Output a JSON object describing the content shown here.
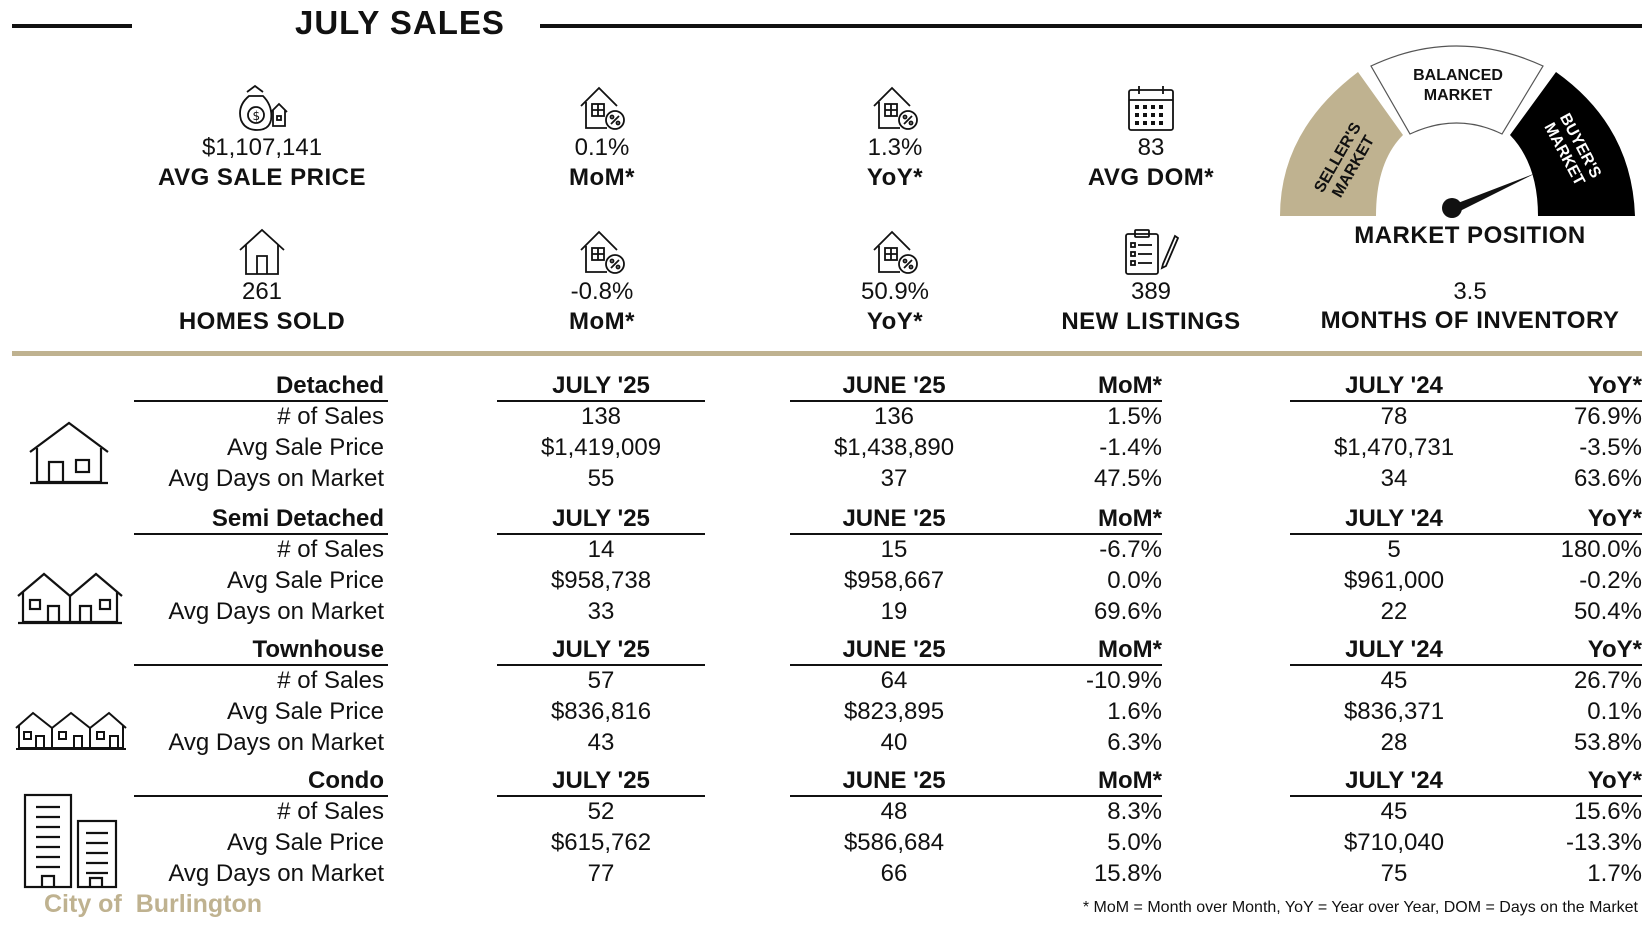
{
  "title": "JULY SALES",
  "stats_row1": [
    {
      "value": "$1,107,141",
      "label": "AVG SALE PRICE",
      "icon": "money-bag-house-icon"
    },
    {
      "value": "0.1%",
      "label": "MoM*",
      "icon": "house-percent-icon"
    },
    {
      "value": "1.3%",
      "label": "YoY*",
      "icon": "house-percent-icon"
    },
    {
      "value": "83",
      "label": "AVG DOM*",
      "icon": "calendar-icon"
    }
  ],
  "stats_row2": [
    {
      "value": "261",
      "label": "HOMES SOLD",
      "icon": "house-icon"
    },
    {
      "value": "-0.8%",
      "label": "MoM*",
      "icon": "house-percent-icon"
    },
    {
      "value": "50.9%",
      "label": "YoY*",
      "icon": "house-percent-icon"
    },
    {
      "value": "389",
      "label": "NEW LISTINGS",
      "icon": "clipboard-pencil-icon"
    }
  ],
  "market": {
    "seller": "SELLER'S MARKET",
    "balanced_1": "BALANCED",
    "balanced_2": "MARKET",
    "buyer": "BUYER'S MARKET",
    "position_label": "MARKET POSITION",
    "months_value": "3.5",
    "months_label": "MONTHS OF INVENTORY",
    "colors": {
      "seller": "#bfb290",
      "balanced": "#ffffff",
      "buyer": "#000000",
      "accent": "#bfb290"
    }
  },
  "table": {
    "col_headers": [
      "JULY '25",
      "JUNE '25",
      "MoM*",
      "JULY '24",
      "YoY*"
    ],
    "row_labels": [
      "# of Sales",
      "Avg Sale Price",
      "Avg Days on Market"
    ],
    "sections": [
      {
        "name": "Detached",
        "icon": "detached-house-icon",
        "rows": [
          [
            "138",
            "136",
            "1.5%",
            "78",
            "76.9%"
          ],
          [
            "$1,419,009",
            "$1,438,890",
            "-1.4%",
            "$1,470,731",
            "-3.5%"
          ],
          [
            "55",
            "37",
            "47.5%",
            "34",
            "63.6%"
          ]
        ]
      },
      {
        "name": "Semi Detached",
        "icon": "semi-detached-house-icon",
        "rows": [
          [
            "14",
            "15",
            "-6.7%",
            "5",
            "180.0%"
          ],
          [
            "$958,738",
            "$958,667",
            "0.0%",
            "$961,000",
            "-0.2%"
          ],
          [
            "33",
            "19",
            "69.6%",
            "22",
            "50.4%"
          ]
        ]
      },
      {
        "name": "Townhouse",
        "icon": "townhouse-icon",
        "rows": [
          [
            "57",
            "64",
            "-10.9%",
            "45",
            "26.7%"
          ],
          [
            "$836,816",
            "$823,895",
            "1.6%",
            "$836,371",
            "0.1%"
          ],
          [
            "43",
            "40",
            "6.3%",
            "28",
            "53.8%"
          ]
        ]
      },
      {
        "name": "Condo",
        "icon": "condo-building-icon",
        "rows": [
          [
            "52",
            "48",
            "8.3%",
            "45",
            "15.6%"
          ],
          [
            "$615,762",
            "$586,684",
            "5.0%",
            "$710,040",
            "-13.3%"
          ],
          [
            "77",
            "66",
            "15.8%",
            "75",
            "1.7%"
          ]
        ]
      }
    ]
  },
  "footer": {
    "city_1": "City of",
    "city_2": "Burlington",
    "footnote": "* MoM = Month over Month, YoY = Year over Year, DOM = Days on the Market"
  }
}
